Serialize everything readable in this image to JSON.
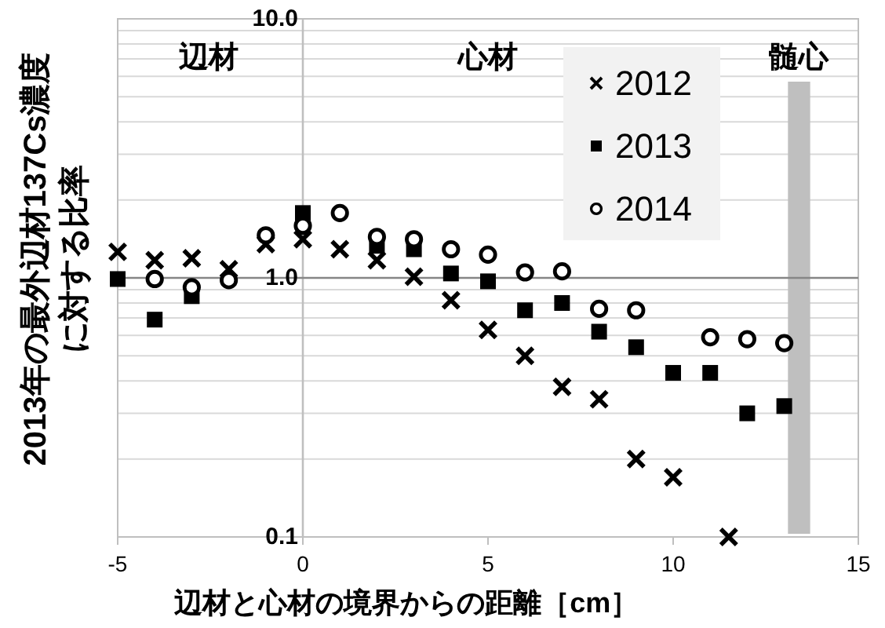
{
  "chart_data": {
    "type": "scatter",
    "xlabel": "辺材と心材の境界からの距離［cm］",
    "ylabel": "2013年の最外辺材137Cs濃度に対する比率",
    "xlim": [
      -5,
      15
    ],
    "xticks": [
      -5,
      0,
      5,
      10,
      15
    ],
    "ylim": [
      0.1,
      10
    ],
    "yticks": [
      {
        "value": 0.1,
        "label": "0.1"
      },
      {
        "value": 0.2,
        "label": null
      },
      {
        "value": 0.3,
        "label": null
      },
      {
        "value": 0.4,
        "label": null
      },
      {
        "value": 0.5,
        "label": null
      },
      {
        "value": 0.6,
        "label": null
      },
      {
        "value": 0.7,
        "label": null
      },
      {
        "value": 0.8,
        "label": null
      },
      {
        "value": 0.9,
        "label": null
      },
      {
        "value": 1,
        "label": "1.0"
      },
      {
        "value": 2,
        "label": null
      },
      {
        "value": 3,
        "label": null
      },
      {
        "value": 4,
        "label": null
      },
      {
        "value": 5,
        "label": null
      },
      {
        "value": 6,
        "label": null
      },
      {
        "value": 7,
        "label": null
      },
      {
        "value": 8,
        "label": null
      },
      {
        "value": 9,
        "label": null
      },
      {
        "value": 10,
        "label": "10.0"
      }
    ],
    "log": "y",
    "grid": "y",
    "legend": "top right",
    "series": [
      {
        "name": "2012",
        "color": "#000000",
        "marker": "cross",
        "x": [
          -5,
          -4,
          -3,
          -2,
          -1,
          0,
          1,
          2,
          3,
          4,
          5,
          6,
          7,
          8,
          9,
          10,
          11.5
        ],
        "values": [
          1.26,
          1.17,
          1.19,
          1.08,
          1.35,
          1.41,
          1.29,
          1.17,
          1.01,
          0.82,
          0.63,
          0.5,
          0.38,
          0.34,
          0.2,
          0.17,
          0.1
        ]
      },
      {
        "name": "2013",
        "color": "#000000",
        "marker": "square",
        "x": [
          -5,
          -4,
          -3,
          0,
          2,
          3,
          4,
          5,
          6,
          7,
          8,
          9,
          10,
          11,
          12,
          13
        ],
        "values": [
          0.99,
          0.69,
          0.85,
          1.78,
          1.33,
          1.29,
          1.04,
          0.97,
          0.75,
          0.8,
          0.62,
          0.54,
          0.43,
          0.43,
          0.3,
          0.32
        ]
      },
      {
        "name": "2014",
        "color": "#000000",
        "marker": "circle",
        "x": [
          -4,
          -3,
          -2,
          -1,
          0,
          1,
          2,
          3,
          4,
          5,
          6,
          7,
          8,
          9,
          11,
          12,
          13
        ],
        "values": [
          0.99,
          0.92,
          0.98,
          1.46,
          1.59,
          1.78,
          1.44,
          1.41,
          1.29,
          1.23,
          1.05,
          1.06,
          0.76,
          0.75,
          0.59,
          0.58,
          0.56
        ]
      }
    ],
    "bands": [
      {
        "axis": "x",
        "from": 13.1,
        "to": 13.7,
        "label": "髄心",
        "color": "#bfbfbf"
      }
    ],
    "ref_lines": [
      {
        "axis": "y",
        "value": 1,
        "color": "#868686"
      }
    ],
    "annotations": [
      "辺材",
      "心材"
    ]
  }
}
